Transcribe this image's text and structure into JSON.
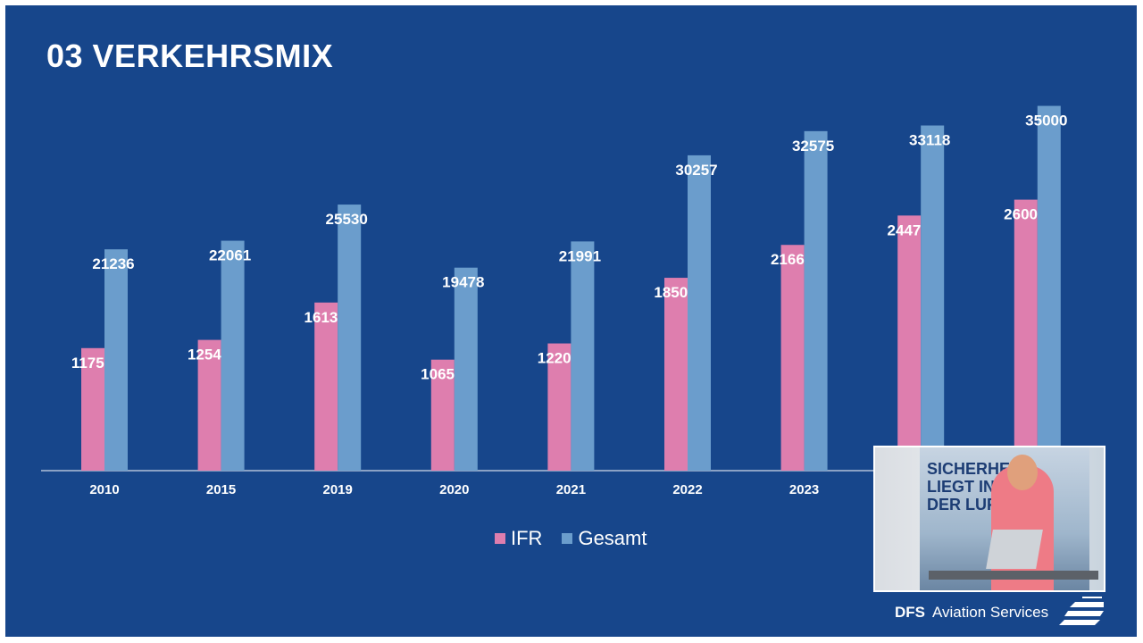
{
  "slide": {
    "title": "03 VERKEHRSMIX",
    "background_color": "#17468b"
  },
  "chart_data": {
    "type": "bar",
    "categories": [
      "2010",
      "2015",
      "2019",
      "2020",
      "2021",
      "2022",
      "2023",
      "",
      ""
    ],
    "series": [
      {
        "name": "IFR",
        "color": "#de7eae",
        "values": [
          11757,
          12545,
          16131,
          10651,
          12206,
          18504,
          21660,
          24477,
          26000
        ]
      },
      {
        "name": "Gesamt",
        "color": "#6b9dcc",
        "values": [
          21236,
          22061,
          25530,
          19478,
          21991,
          30257,
          32575,
          33118,
          35000
        ]
      }
    ],
    "ylim": [
      0,
      40000
    ],
    "grid": false,
    "legend_position": "bottom",
    "data_labels": true
  },
  "logo": {
    "brand": "DFS",
    "name": "Aviation Services"
  },
  "webcam": {
    "banner_line1": "SICHERHEI",
    "banner_line2": "LIEGT IN",
    "banner_line3": "DER LUFT"
  }
}
